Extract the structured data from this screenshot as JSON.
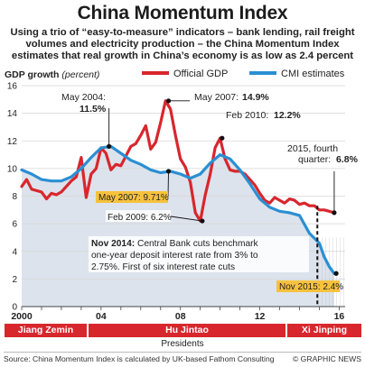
{
  "header": {
    "title": "China Momentum Index",
    "subtitle_lines": [
      "Using a trio of “easy-to-measure” indicators – bank lending, rail freight",
      "volumes and electricity production – the China Momentum Index",
      "estimates that real growth in China’s economy is as low as 2.4 percent"
    ]
  },
  "chart_data": {
    "type": "line",
    "title": "",
    "ylabel": "GDP growth",
    "ylabel_unit": "(percent)",
    "ylim": [
      0,
      16
    ],
    "xlim": [
      2000,
      2016.3
    ],
    "y_ticks": [
      0,
      2,
      4,
      6,
      8,
      10,
      12,
      14,
      16
    ],
    "x_ticks": [
      {
        "value": 2000,
        "label": "2000"
      },
      {
        "value": 2004,
        "label": "04"
      },
      {
        "value": 2008,
        "label": "08"
      },
      {
        "value": 2012,
        "label": "12"
      },
      {
        "value": 2016,
        "label": "16"
      }
    ],
    "grid": true,
    "legend_position": "top-right",
    "series": [
      {
        "name": "Official GDP",
        "color": "#d7272d",
        "x": [
          2000.0,
          2000.25,
          2000.5,
          2000.75,
          2001.0,
          2001.25,
          2001.5,
          2001.75,
          2002.0,
          2002.25,
          2002.5,
          2002.75,
          2003.0,
          2003.25,
          2003.5,
          2003.75,
          2004.0,
          2004.25,
          2004.5,
          2004.75,
          2005.0,
          2005.25,
          2005.5,
          2005.75,
          2006.0,
          2006.25,
          2006.5,
          2006.75,
          2007.0,
          2007.25,
          2007.5,
          2007.75,
          2008.0,
          2008.25,
          2008.5,
          2008.75,
          2009.0,
          2009.25,
          2009.5,
          2009.75,
          2010.0,
          2010.25,
          2010.5,
          2010.75,
          2011.0,
          2011.25,
          2011.5,
          2011.75,
          2012.0,
          2012.25,
          2012.5,
          2012.75,
          2013.0,
          2013.25,
          2013.5,
          2013.75,
          2014.0,
          2014.25,
          2014.5,
          2014.75,
          2015.0,
          2015.25,
          2015.5,
          2015.75
        ],
        "values": [
          8.7,
          9.2,
          8.5,
          8.4,
          8.3,
          7.8,
          8.2,
          8.1,
          8.3,
          8.7,
          9.1,
          9.4,
          10.8,
          7.9,
          9.6,
          10.0,
          11.5,
          11.1,
          9.9,
          10.3,
          10.2,
          10.9,
          11.6,
          11.8,
          12.4,
          13.1,
          11.4,
          11.9,
          13.3,
          14.9,
          14.3,
          12.4,
          10.7,
          10.1,
          9.0,
          6.8,
          6.2,
          8.1,
          9.6,
          11.5,
          12.2,
          10.7,
          9.9,
          9.8,
          9.8,
          9.6,
          9.2,
          8.8,
          8.2,
          7.7,
          7.5,
          7.9,
          7.7,
          7.5,
          7.8,
          7.7,
          7.4,
          7.5,
          7.3,
          7.3,
          7.0,
          7.0,
          6.9,
          6.8
        ]
      },
      {
        "name": "CMI estimates",
        "color": "#2a8fd3",
        "x": [
          2000.0,
          2000.5,
          2001.0,
          2001.5,
          2002.0,
          2002.5,
          2003.0,
          2003.5,
          2004.0,
          2004.5,
          2005.0,
          2005.5,
          2006.0,
          2006.5,
          2007.0,
          2007.5,
          2008.0,
          2008.5,
          2009.0,
          2009.5,
          2010.0,
          2010.5,
          2011.0,
          2011.5,
          2012.0,
          2012.5,
          2013.0,
          2013.5,
          2014.0,
          2014.5,
          2015.0,
          2015.25,
          2015.5,
          2015.75
        ],
        "values": [
          9.9,
          9.6,
          9.2,
          9.1,
          9.1,
          9.4,
          10.0,
          10.8,
          11.5,
          11.6,
          11.1,
          10.6,
          10.3,
          9.9,
          9.7,
          9.8,
          9.6,
          9.3,
          9.6,
          10.4,
          11.0,
          10.7,
          9.9,
          8.9,
          7.8,
          7.2,
          6.9,
          6.8,
          6.6,
          5.3,
          4.6,
          3.6,
          2.9,
          2.4
        ]
      }
    ],
    "annotations": [
      {
        "text": "May 2004: ",
        "bold": "11.5%"
      },
      {
        "text": "May 2007: ",
        "bold": "14.9%"
      },
      {
        "text": "Feb 2010: ",
        "bold": "12.2%"
      },
      {
        "text": "2015, fourth quarter: ",
        "bold": "6.8%"
      },
      {
        "text": "May 2007: 9.71%"
      },
      {
        "text": "Feb 2009: 6.2%"
      },
      {
        "text": "Nov 2014:",
        "rest": "Central Bank cuts benchmark one-year deposit interest rate from 3% to 2.75%. First of six interest rate cuts"
      },
      {
        "text": "Nov 2015: 2.4%"
      }
    ]
  },
  "annotations_text": {
    "may2004_a": "May 2004:",
    "may2004_b": "11.5%",
    "may2007_a": "May 2007:",
    "may2007_b": "14.9%",
    "feb2010_a": "Feb 2010:",
    "feb2010_b": "12.2%",
    "q4_a": "2015, fourth",
    "q4_b": "quarter:",
    "q4_c": "6.8%",
    "cmi_may2007": "May 2007: 9.71%",
    "feb2009": "Feb 2009: 6.2%",
    "nov2014_bold": "Nov 2014:",
    "nov2014_line1": "Central Bank cuts benchmark",
    "nov2014_line2": "one-year deposit interest rate from 3% to",
    "nov2014_line3": "2.75%. First of six interest rate cuts",
    "nov2015": "Nov 2015: 2.4%"
  },
  "presidents": {
    "label": "Presidents",
    "items": [
      {
        "name": "Jiang Zemin"
      },
      {
        "name": "Hu Jintao"
      },
      {
        "name": "Xi Jinping"
      }
    ],
    "color": "#d7272d"
  },
  "footer": {
    "source": "Source: China Momentum Index is calculated by UK-based Fathom Consulting",
    "credit": "© GRAPHIC NEWS"
  },
  "colors": {
    "official": "#d7272d",
    "cmi": "#2a8fd3",
    "shade": "#dde3ec",
    "grid": "#d6d6d6",
    "highlight": "#f6c23e"
  }
}
